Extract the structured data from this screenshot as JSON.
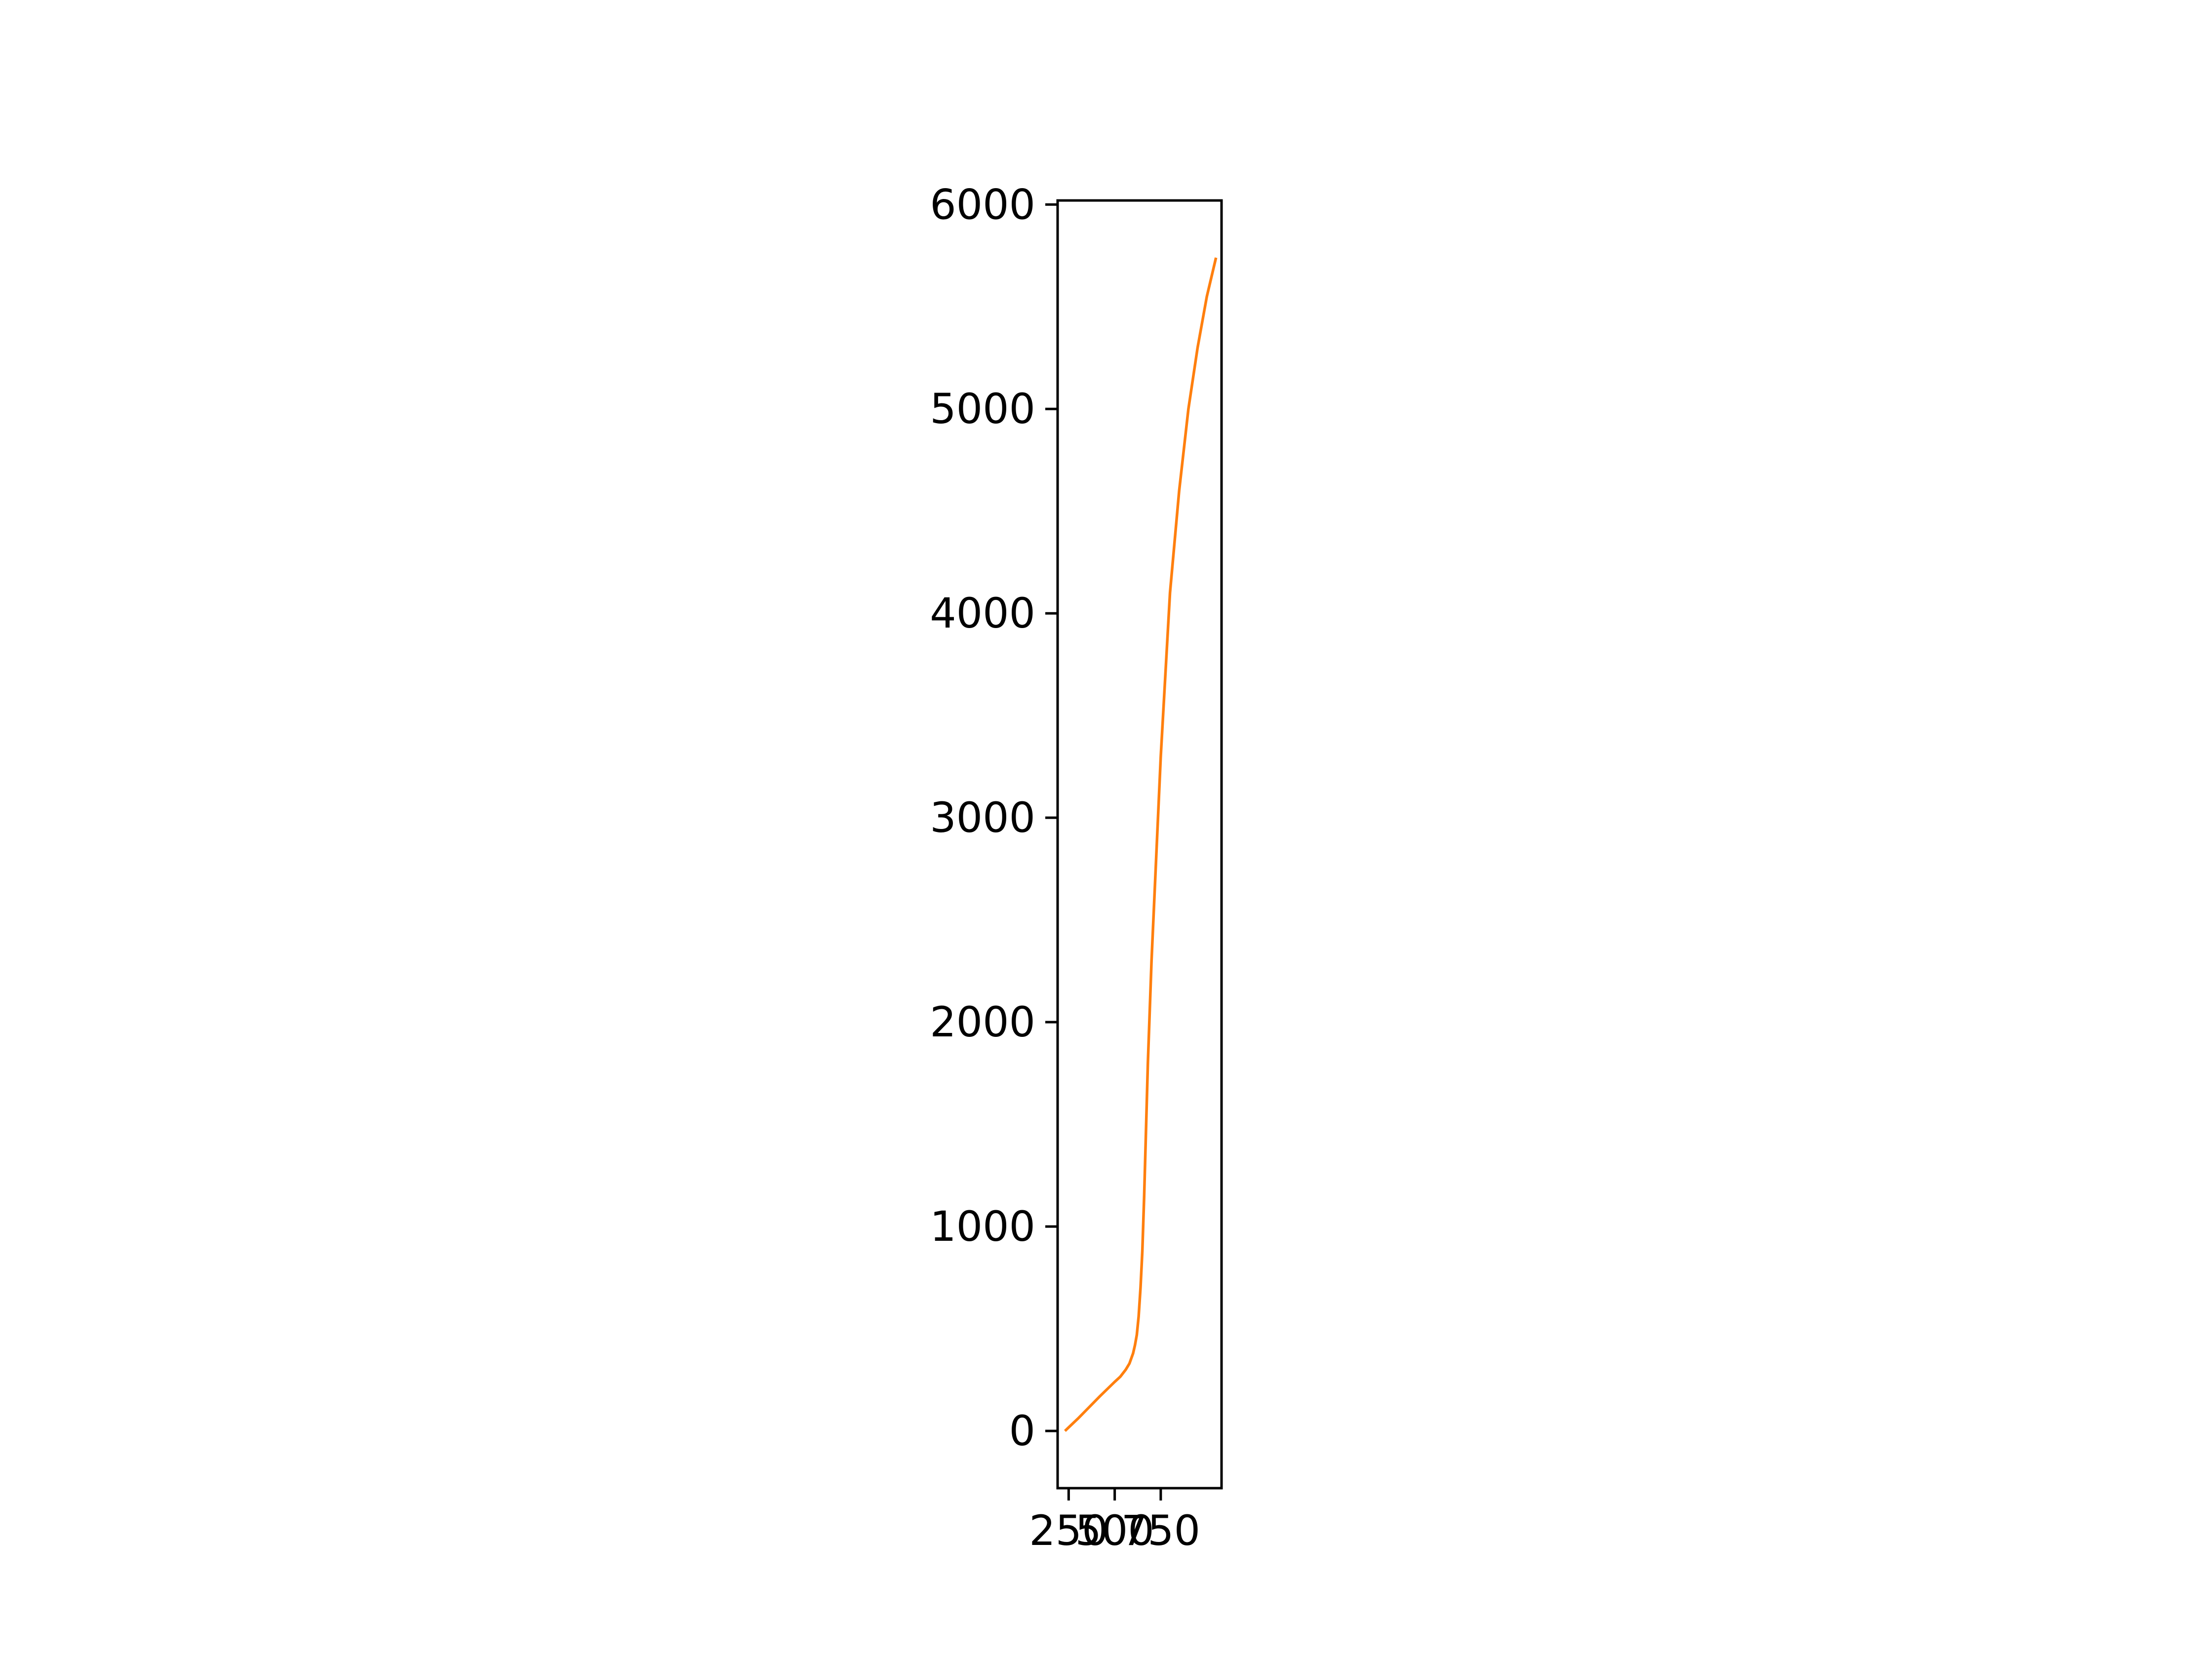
{
  "chart_data": {
    "type": "line",
    "title": "",
    "xlabel": "",
    "ylabel": "",
    "xlim": [
      190,
      1080
    ],
    "ylim": [
      -280,
      6020
    ],
    "x_ticks": [
      250,
      500,
      750
    ],
    "x_tick_labels": [
      "250",
      "500",
      "750"
    ],
    "y_ticks": [
      0,
      1000,
      2000,
      3000,
      4000,
      5000,
      6000
    ],
    "y_tick_labels": [
      "0",
      "1000",
      "2000",
      "3000",
      "4000",
      "5000",
      "6000"
    ],
    "grid": false,
    "legend": "none",
    "series": [
      {
        "color": "#ff7f0e",
        "x": [
          230,
          300,
          360,
          420,
          460,
          500,
          530,
          560,
          580,
          600,
          610,
          620,
          630,
          640,
          650,
          660,
          680,
          700,
          750,
          800,
          850,
          900,
          950,
          1000,
          1050
        ],
        "y": [
          0,
          60,
          115,
          170,
          205,
          240,
          265,
          300,
          330,
          380,
          420,
          470,
          560,
          700,
          880,
          1150,
          1800,
          2300,
          3300,
          4100,
          4600,
          5000,
          5300,
          5550,
          5740
        ]
      }
    ]
  }
}
